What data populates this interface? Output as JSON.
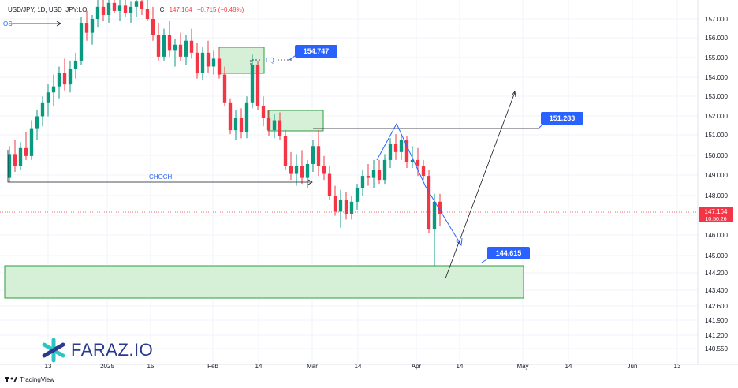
{
  "header": {
    "symbol": "USD/JPY, 1D, USD_JPY:LO",
    "close_label": "C",
    "close_value": "147.164",
    "change": "−0.715 (−0.48%)"
  },
  "brand": {
    "name": "FARAZ.IO",
    "platform": "TradingView"
  },
  "price_axis": {
    "ticks": [
      "157.000",
      "156.000",
      "155.000",
      "154.000",
      "153.000",
      "152.000",
      "151.000",
      "150.000",
      "149.000",
      "148.000",
      "147.000",
      "146.000",
      "145.000",
      "144.200",
      "143.400",
      "142.600",
      "141.900",
      "141.200",
      "140.550"
    ],
    "current_price": "147.164",
    "countdown": "10:50:26"
  },
  "time_axis": {
    "ticks": [
      "13",
      "2025",
      "15",
      "Feb",
      "14",
      "Mar",
      "14",
      "Apr",
      "14",
      "May",
      "14",
      "Jun",
      "13"
    ]
  },
  "annotations": {
    "bos_label": "OS",
    "choch_label": "CHOCH",
    "lq_label": "LQ",
    "callouts": [
      "154.747",
      "151.283",
      "144.615"
    ]
  },
  "colors": {
    "bull": "#089981",
    "bear": "#f23645",
    "zone_fill": "#d6efd7",
    "zone_stroke": "#2e9e45",
    "callout": "#2962ff",
    "blue_line": "#2962ff",
    "price_line": "#f23645",
    "text": "#131722"
  },
  "chart_data": {
    "type": "candlestick",
    "symbol": "USD/JPY",
    "timeframe": "1D",
    "candles": [
      {
        "o": 149.0,
        "h": 150.6,
        "l": 148.8,
        "c": 150.2
      },
      {
        "o": 150.2,
        "h": 150.9,
        "l": 149.3,
        "c": 149.6
      },
      {
        "o": 149.6,
        "h": 150.8,
        "l": 149.4,
        "c": 150.5
      },
      {
        "o": 150.5,
        "h": 151.3,
        "l": 149.9,
        "c": 150.1
      },
      {
        "o": 150.1,
        "h": 151.9,
        "l": 149.9,
        "c": 151.5
      },
      {
        "o": 151.5,
        "h": 152.4,
        "l": 150.9,
        "c": 152.1
      },
      {
        "o": 152.1,
        "h": 153.1,
        "l": 151.6,
        "c": 152.8
      },
      {
        "o": 152.8,
        "h": 153.7,
        "l": 152.1,
        "c": 153.3
      },
      {
        "o": 153.3,
        "h": 154.2,
        "l": 152.6,
        "c": 153.6
      },
      {
        "o": 153.6,
        "h": 154.6,
        "l": 153.0,
        "c": 154.3
      },
      {
        "o": 154.3,
        "h": 155.0,
        "l": 153.4,
        "c": 153.7
      },
      {
        "o": 153.7,
        "h": 154.9,
        "l": 153.3,
        "c": 154.5
      },
      {
        "o": 154.5,
        "h": 155.3,
        "l": 154.0,
        "c": 154.9
      },
      {
        "o": 154.9,
        "h": 157.1,
        "l": 154.7,
        "c": 156.8
      },
      {
        "o": 156.8,
        "h": 157.4,
        "l": 155.9,
        "c": 156.3
      },
      {
        "o": 156.3,
        "h": 157.2,
        "l": 155.7,
        "c": 157.0
      },
      {
        "o": 157.0,
        "h": 158.0,
        "l": 156.6,
        "c": 157.6
      },
      {
        "o": 157.6,
        "h": 158.2,
        "l": 156.9,
        "c": 157.2
      },
      {
        "o": 157.2,
        "h": 158.1,
        "l": 156.8,
        "c": 157.8
      },
      {
        "o": 157.8,
        "h": 158.4,
        "l": 157.3,
        "c": 157.4
      },
      {
        "o": 157.4,
        "h": 158.0,
        "l": 156.9,
        "c": 157.7
      },
      {
        "o": 157.7,
        "h": 158.5,
        "l": 157.1,
        "c": 157.3
      },
      {
        "o": 157.3,
        "h": 157.9,
        "l": 156.8,
        "c": 157.6
      },
      {
        "o": 157.6,
        "h": 158.3,
        "l": 157.1,
        "c": 157.9
      },
      {
        "o": 157.9,
        "h": 158.4,
        "l": 157.2,
        "c": 157.5
      },
      {
        "o": 157.5,
        "h": 158.1,
        "l": 156.9,
        "c": 157.0
      },
      {
        "o": 157.0,
        "h": 157.6,
        "l": 155.9,
        "c": 156.2
      },
      {
        "o": 156.2,
        "h": 156.8,
        "l": 154.9,
        "c": 155.1
      },
      {
        "o": 155.1,
        "h": 156.5,
        "l": 154.9,
        "c": 156.2
      },
      {
        "o": 156.2,
        "h": 156.9,
        "l": 155.1,
        "c": 155.4
      },
      {
        "o": 155.4,
        "h": 156.0,
        "l": 154.6,
        "c": 155.7
      },
      {
        "o": 155.7,
        "h": 156.3,
        "l": 154.9,
        "c": 155.1
      },
      {
        "o": 155.1,
        "h": 156.2,
        "l": 154.7,
        "c": 155.9
      },
      {
        "o": 155.9,
        "h": 156.5,
        "l": 155.0,
        "c": 155.3
      },
      {
        "o": 155.3,
        "h": 155.8,
        "l": 154.0,
        "c": 154.3
      },
      {
        "o": 154.3,
        "h": 155.6,
        "l": 153.9,
        "c": 155.3
      },
      {
        "o": 155.3,
        "h": 155.9,
        "l": 154.3,
        "c": 154.6
      },
      {
        "o": 154.6,
        "h": 155.4,
        "l": 154.2,
        "c": 155.0
      },
      {
        "o": 155.0,
        "h": 155.5,
        "l": 154.0,
        "c": 154.2
      },
      {
        "o": 154.2,
        "h": 154.6,
        "l": 152.6,
        "c": 152.8
      },
      {
        "o": 152.8,
        "h": 153.0,
        "l": 151.2,
        "c": 151.4
      },
      {
        "o": 151.4,
        "h": 152.4,
        "l": 150.9,
        "c": 152.0
      },
      {
        "o": 152.0,
        "h": 152.5,
        "l": 151.0,
        "c": 151.3
      },
      {
        "o": 151.3,
        "h": 153.1,
        "l": 151.0,
        "c": 152.8
      },
      {
        "o": 152.8,
        "h": 155.2,
        "l": 152.5,
        "c": 154.7
      },
      {
        "o": 154.7,
        "h": 154.9,
        "l": 152.4,
        "c": 152.6
      },
      {
        "o": 152.6,
        "h": 153.1,
        "l": 151.6,
        "c": 152.0
      },
      {
        "o": 152.0,
        "h": 152.4,
        "l": 151.1,
        "c": 151.4
      },
      {
        "o": 151.4,
        "h": 152.2,
        "l": 151.0,
        "c": 151.9
      },
      {
        "o": 151.9,
        "h": 152.3,
        "l": 150.9,
        "c": 151.1
      },
      {
        "o": 151.1,
        "h": 151.4,
        "l": 149.4,
        "c": 149.6
      },
      {
        "o": 149.6,
        "h": 150.3,
        "l": 148.9,
        "c": 149.2
      },
      {
        "o": 149.2,
        "h": 150.2,
        "l": 148.6,
        "c": 149.6
      },
      {
        "o": 149.6,
        "h": 150.4,
        "l": 148.7,
        "c": 149.0
      },
      {
        "o": 149.0,
        "h": 149.9,
        "l": 148.5,
        "c": 149.7
      },
      {
        "o": 149.7,
        "h": 150.9,
        "l": 149.3,
        "c": 150.6
      },
      {
        "o": 150.6,
        "h": 151.4,
        "l": 149.1,
        "c": 149.6
      },
      {
        "o": 149.6,
        "h": 150.1,
        "l": 148.9,
        "c": 149.2
      },
      {
        "o": 149.2,
        "h": 149.6,
        "l": 147.9,
        "c": 148.1
      },
      {
        "o": 148.1,
        "h": 148.6,
        "l": 147.1,
        "c": 147.3
      },
      {
        "o": 147.3,
        "h": 148.4,
        "l": 146.5,
        "c": 147.9
      },
      {
        "o": 147.9,
        "h": 148.3,
        "l": 146.9,
        "c": 147.2
      },
      {
        "o": 147.2,
        "h": 148.1,
        "l": 146.9,
        "c": 147.8
      },
      {
        "o": 147.8,
        "h": 148.7,
        "l": 147.4,
        "c": 148.5
      },
      {
        "o": 148.5,
        "h": 149.4,
        "l": 148.1,
        "c": 149.1
      },
      {
        "o": 149.1,
        "h": 149.7,
        "l": 148.6,
        "c": 149.0
      },
      {
        "o": 149.0,
        "h": 149.9,
        "l": 148.5,
        "c": 149.4
      },
      {
        "o": 149.4,
        "h": 149.9,
        "l": 148.7,
        "c": 148.9
      },
      {
        "o": 148.9,
        "h": 150.2,
        "l": 148.7,
        "c": 149.9
      },
      {
        "o": 149.9,
        "h": 151.0,
        "l": 149.5,
        "c": 150.7
      },
      {
        "o": 150.7,
        "h": 151.2,
        "l": 149.9,
        "c": 150.3
      },
      {
        "o": 150.3,
        "h": 151.1,
        "l": 149.9,
        "c": 150.9
      },
      {
        "o": 150.9,
        "h": 151.1,
        "l": 149.5,
        "c": 149.8
      },
      {
        "o": 149.8,
        "h": 150.6,
        "l": 149.5,
        "c": 149.9
      },
      {
        "o": 149.9,
        "h": 150.5,
        "l": 149.1,
        "c": 149.6
      },
      {
        "o": 149.6,
        "h": 149.9,
        "l": 148.9,
        "c": 149.1
      },
      {
        "o": 149.1,
        "h": 149.4,
        "l": 146.2,
        "c": 146.4
      },
      {
        "o": 146.4,
        "h": 148.2,
        "l": 144.6,
        "c": 147.8
      },
      {
        "o": 147.8,
        "h": 148.2,
        "l": 146.6,
        "c": 147.2
      }
    ],
    "zones": [
      {
        "name": "upper-supply",
        "from": 154.2,
        "to": 155.6,
        "label": "LQ"
      },
      {
        "name": "mid-supply",
        "from": 151.3,
        "to": 152.3
      },
      {
        "name": "demand",
        "from": 143.1,
        "to": 144.6
      }
    ],
    "levels": [
      154.747,
      151.283,
      144.615
    ],
    "current_price": 147.164,
    "ylim": [
      140.55,
      157.5
    ]
  }
}
